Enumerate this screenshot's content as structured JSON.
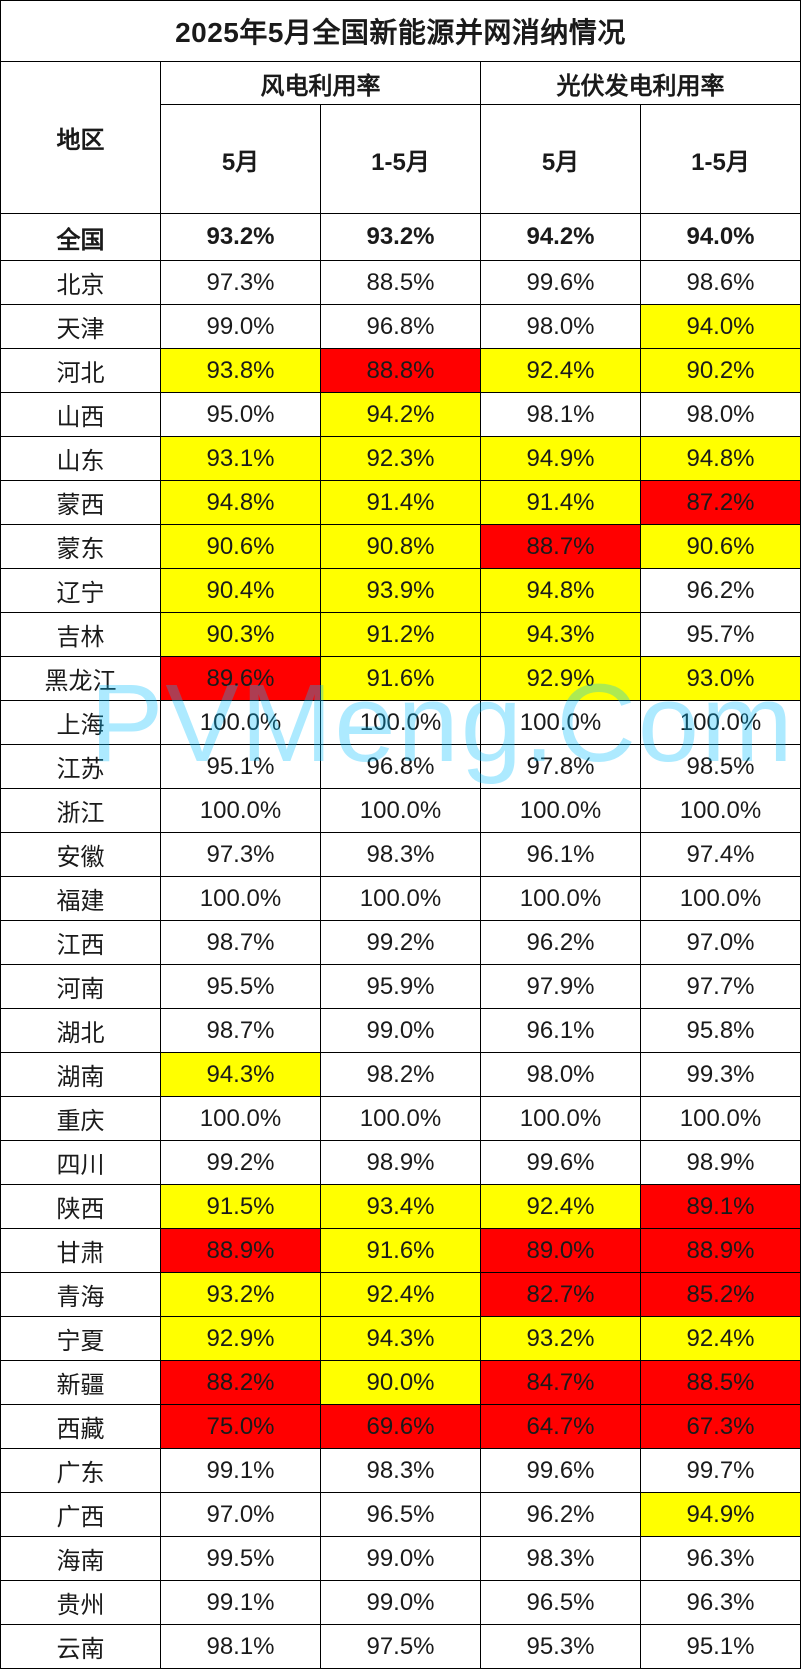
{
  "title": "2025年5月全国新能源并网消纳情况",
  "header": {
    "region": "地区",
    "wind_group": "风电利用率",
    "solar_group": "光伏发电利用率",
    "wind_may": "5月",
    "wind_ytd": "1-5月",
    "solar_may": "5月",
    "solar_ytd": "1-5月"
  },
  "national": {
    "region": "全国",
    "values": [
      "93.2%",
      "93.2%",
      "94.2%",
      "94.0%"
    ]
  },
  "rows": [
    {
      "region": "北京",
      "values": [
        "97.3%",
        "88.5%",
        "99.6%",
        "98.6%"
      ],
      "levels": [
        "",
        "",
        "",
        ""
      ]
    },
    {
      "region": "天津",
      "values": [
        "99.0%",
        "96.8%",
        "98.0%",
        "94.0%"
      ],
      "levels": [
        "",
        "",
        "",
        "yellow"
      ]
    },
    {
      "region": "河北",
      "values": [
        "93.8%",
        "88.8%",
        "92.4%",
        "90.2%"
      ],
      "levels": [
        "yellow",
        "red",
        "yellow",
        "yellow"
      ]
    },
    {
      "region": "山西",
      "values": [
        "95.0%",
        "94.2%",
        "98.1%",
        "98.0%"
      ],
      "levels": [
        "",
        "yellow",
        "",
        ""
      ]
    },
    {
      "region": "山东",
      "values": [
        "93.1%",
        "92.3%",
        "94.9%",
        "94.8%"
      ],
      "levels": [
        "yellow",
        "yellow",
        "yellow",
        "yellow"
      ]
    },
    {
      "region": "蒙西",
      "values": [
        "94.8%",
        "91.4%",
        "91.4%",
        "87.2%"
      ],
      "levels": [
        "yellow",
        "yellow",
        "yellow",
        "red"
      ]
    },
    {
      "region": "蒙东",
      "values": [
        "90.6%",
        "90.8%",
        "88.7%",
        "90.6%"
      ],
      "levels": [
        "yellow",
        "yellow",
        "red",
        "yellow"
      ]
    },
    {
      "region": "辽宁",
      "values": [
        "90.4%",
        "93.9%",
        "94.8%",
        "96.2%"
      ],
      "levels": [
        "yellow",
        "yellow",
        "yellow",
        ""
      ]
    },
    {
      "region": "吉林",
      "values": [
        "90.3%",
        "91.2%",
        "94.3%",
        "95.7%"
      ],
      "levels": [
        "yellow",
        "yellow",
        "yellow",
        ""
      ]
    },
    {
      "region": "黑龙江",
      "values": [
        "89.6%",
        "91.6%",
        "92.9%",
        "93.0%"
      ],
      "levels": [
        "red",
        "yellow",
        "yellow",
        "yellow"
      ]
    },
    {
      "region": "上海",
      "values": [
        "100.0%",
        "100.0%",
        "100.0%",
        "100.0%"
      ],
      "levels": [
        "",
        "",
        "",
        ""
      ]
    },
    {
      "region": "江苏",
      "values": [
        "95.1%",
        "96.8%",
        "97.8%",
        "98.5%"
      ],
      "levels": [
        "",
        "",
        "",
        ""
      ]
    },
    {
      "region": "浙江",
      "values": [
        "100.0%",
        "100.0%",
        "100.0%",
        "100.0%"
      ],
      "levels": [
        "",
        "",
        "",
        ""
      ]
    },
    {
      "region": "安徽",
      "values": [
        "97.3%",
        "98.3%",
        "96.1%",
        "97.4%"
      ],
      "levels": [
        "",
        "",
        "",
        ""
      ]
    },
    {
      "region": "福建",
      "values": [
        "100.0%",
        "100.0%",
        "100.0%",
        "100.0%"
      ],
      "levels": [
        "",
        "",
        "",
        ""
      ]
    },
    {
      "region": "江西",
      "values": [
        "98.7%",
        "99.2%",
        "96.2%",
        "97.0%"
      ],
      "levels": [
        "",
        "",
        "",
        ""
      ]
    },
    {
      "region": "河南",
      "values": [
        "95.5%",
        "95.9%",
        "97.9%",
        "97.7%"
      ],
      "levels": [
        "",
        "",
        "",
        ""
      ]
    },
    {
      "region": "湖北",
      "values": [
        "98.7%",
        "99.0%",
        "96.1%",
        "95.8%"
      ],
      "levels": [
        "",
        "",
        "",
        ""
      ]
    },
    {
      "region": "湖南",
      "values": [
        "94.3%",
        "98.2%",
        "98.0%",
        "99.3%"
      ],
      "levels": [
        "yellow",
        "",
        "",
        ""
      ]
    },
    {
      "region": "重庆",
      "values": [
        "100.0%",
        "100.0%",
        "100.0%",
        "100.0%"
      ],
      "levels": [
        "",
        "",
        "",
        ""
      ]
    },
    {
      "region": "四川",
      "values": [
        "99.2%",
        "98.9%",
        "99.6%",
        "98.9%"
      ],
      "levels": [
        "",
        "",
        "",
        ""
      ]
    },
    {
      "region": "陕西",
      "values": [
        "91.5%",
        "93.4%",
        "92.4%",
        "89.1%"
      ],
      "levels": [
        "yellow",
        "yellow",
        "yellow",
        "red"
      ]
    },
    {
      "region": "甘肃",
      "values": [
        "88.9%",
        "91.6%",
        "89.0%",
        "88.9%"
      ],
      "levels": [
        "red",
        "yellow",
        "red",
        "red"
      ]
    },
    {
      "region": "青海",
      "values": [
        "93.2%",
        "92.4%",
        "82.7%",
        "85.2%"
      ],
      "levels": [
        "yellow",
        "yellow",
        "red",
        "red"
      ]
    },
    {
      "region": "宁夏",
      "values": [
        "92.9%",
        "94.3%",
        "93.2%",
        "92.4%"
      ],
      "levels": [
        "yellow",
        "yellow",
        "yellow",
        "yellow"
      ]
    },
    {
      "region": "新疆",
      "values": [
        "88.2%",
        "90.0%",
        "84.7%",
        "88.5%"
      ],
      "levels": [
        "red",
        "yellow",
        "red",
        "red"
      ]
    },
    {
      "region": "西藏",
      "values": [
        "75.0%",
        "69.6%",
        "64.7%",
        "67.3%"
      ],
      "levels": [
        "red",
        "red",
        "red",
        "red"
      ]
    },
    {
      "region": "广东",
      "values": [
        "99.1%",
        "98.3%",
        "99.6%",
        "99.7%"
      ],
      "levels": [
        "",
        "",
        "",
        ""
      ]
    },
    {
      "region": "广西",
      "values": [
        "97.0%",
        "96.5%",
        "96.2%",
        "94.9%"
      ],
      "levels": [
        "",
        "",
        "",
        "yellow"
      ]
    },
    {
      "region": "海南",
      "values": [
        "99.5%",
        "99.0%",
        "98.3%",
        "96.3%"
      ],
      "levels": [
        "",
        "",
        "",
        ""
      ]
    },
    {
      "region": "贵州",
      "values": [
        "99.1%",
        "99.0%",
        "96.5%",
        "96.3%"
      ],
      "levels": [
        "",
        "",
        "",
        ""
      ]
    },
    {
      "region": "云南",
      "values": [
        "98.1%",
        "97.5%",
        "95.3%",
        "95.1%"
      ],
      "levels": [
        "",
        "",
        "",
        ""
      ]
    }
  ],
  "colors": {
    "highlight_yellow": "#ffff00",
    "highlight_red": "#ff0000"
  },
  "watermark": "PVMeng.Com"
}
